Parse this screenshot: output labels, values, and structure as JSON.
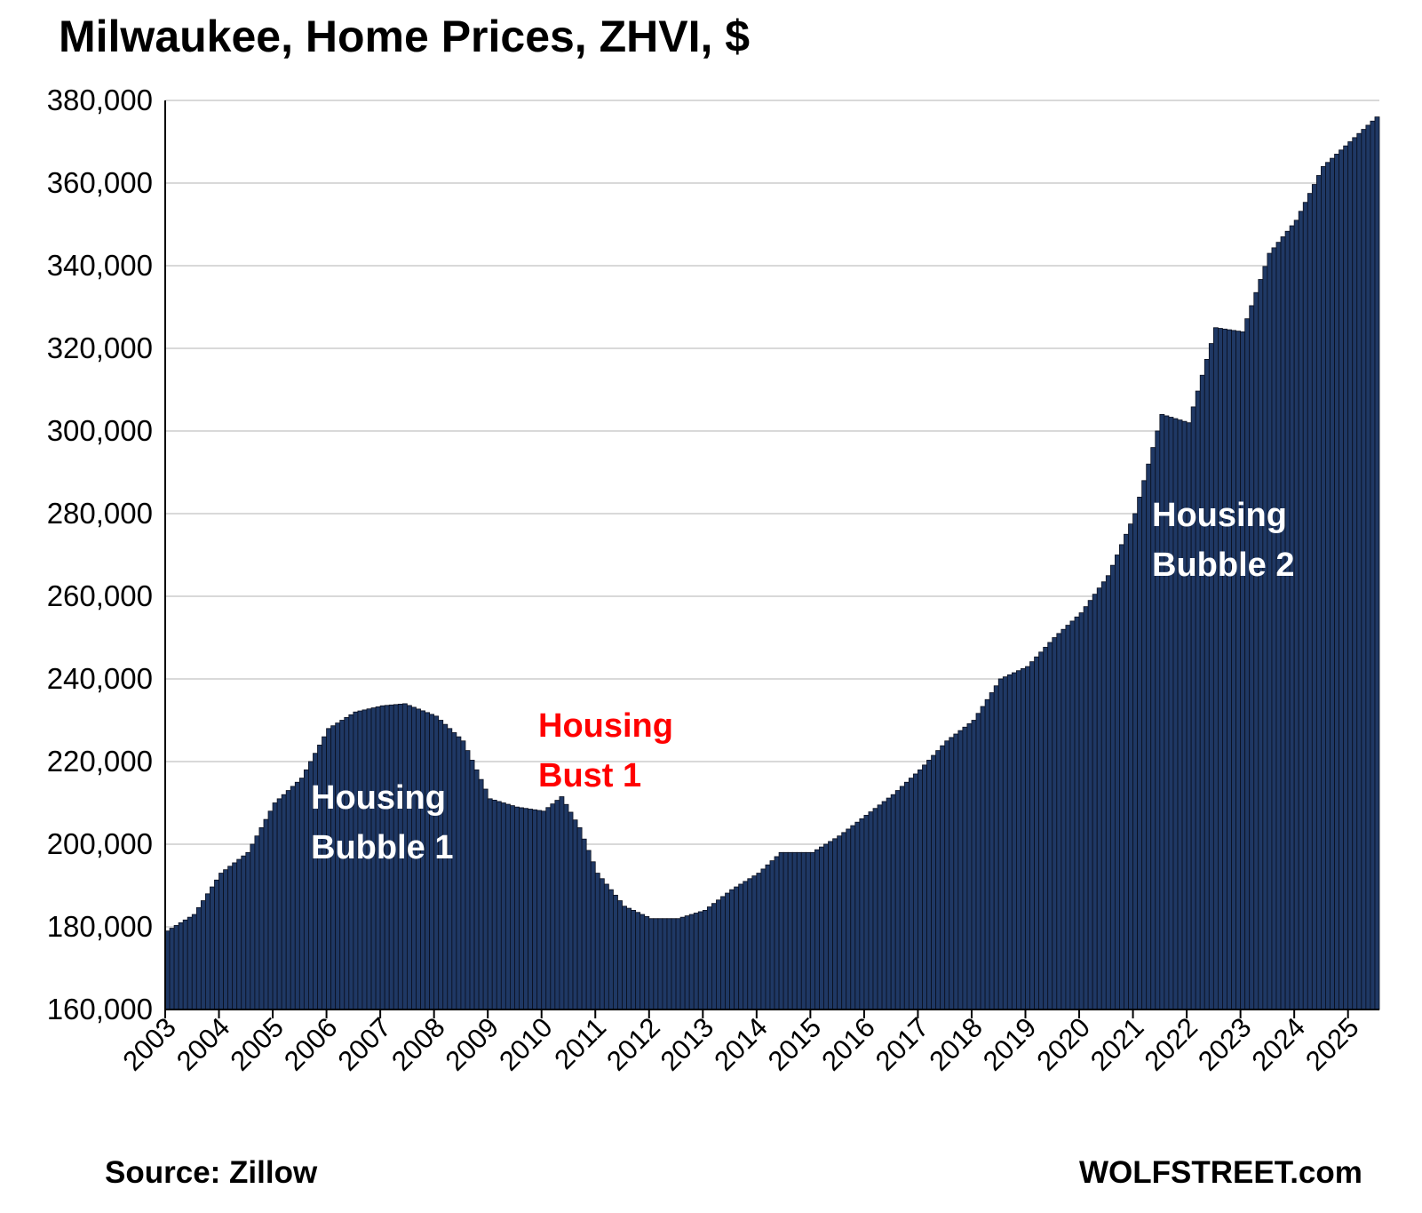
{
  "chart_data": {
    "type": "bar",
    "title": "Milwaukee, Home Prices, ZHVI, $",
    "xlabel": "",
    "ylabel": "",
    "ylim": [
      160000,
      380000
    ],
    "yticks": [
      "160,000",
      "180,000",
      "200,000",
      "220,000",
      "240,000",
      "260,000",
      "280,000",
      "300,000",
      "320,000",
      "340,000",
      "360,000",
      "380,000"
    ],
    "ytick_values": [
      160000,
      180000,
      200000,
      220000,
      240000,
      260000,
      280000,
      300000,
      320000,
      340000,
      360000,
      380000
    ],
    "xticks": [
      "2003",
      "2004",
      "2005",
      "2006",
      "2007",
      "2008",
      "2009",
      "2010",
      "2011",
      "2012",
      "2013",
      "2014",
      "2015",
      "2016",
      "2017",
      "2018",
      "2019",
      "2020",
      "2021",
      "2022",
      "2023",
      "2024",
      "2025"
    ],
    "grid": true,
    "bar_color": "#1f3864",
    "annotations": [
      {
        "lines": [
          "Housing",
          "Bubble 1"
        ],
        "color": "#ffffff"
      },
      {
        "lines": [
          "Housing",
          "Bust 1"
        ],
        "color": "#ff0000"
      },
      {
        "lines": [
          "Housing",
          "Bubble 2"
        ],
        "color": "#ffffff"
      }
    ],
    "monthly_anchors": [
      [
        "2003-01",
        179000
      ],
      [
        "2003-07",
        183000
      ],
      [
        "2004-01",
        193000
      ],
      [
        "2004-07",
        198000
      ],
      [
        "2005-01",
        210000
      ],
      [
        "2005-07",
        216000
      ],
      [
        "2006-01",
        228000
      ],
      [
        "2006-07",
        232000
      ],
      [
        "2007-01",
        233500
      ],
      [
        "2007-06",
        234000
      ],
      [
        "2008-01",
        231000
      ],
      [
        "2008-07",
        225000
      ],
      [
        "2009-01",
        211000
      ],
      [
        "2009-07",
        209000
      ],
      [
        "2010-01",
        208000
      ],
      [
        "2010-05",
        211500
      ],
      [
        "2010-09",
        204000
      ],
      [
        "2011-01",
        193000
      ],
      [
        "2011-07",
        185000
      ],
      [
        "2012-01",
        182000
      ],
      [
        "2012-07",
        182000
      ],
      [
        "2013-01",
        184000
      ],
      [
        "2013-07",
        189000
      ],
      [
        "2014-01",
        193000
      ],
      [
        "2014-06",
        198000
      ],
      [
        "2015-01",
        198000
      ],
      [
        "2015-07",
        202000
      ],
      [
        "2016-01",
        207000
      ],
      [
        "2016-07",
        212000
      ],
      [
        "2017-01",
        218000
      ],
      [
        "2017-07",
        225000
      ],
      [
        "2018-01",
        230000
      ],
      [
        "2018-07",
        240000
      ],
      [
        "2019-01",
        243000
      ],
      [
        "2019-07",
        250000
      ],
      [
        "2020-01",
        256000
      ],
      [
        "2020-07",
        265000
      ],
      [
        "2021-01",
        280000
      ],
      [
        "2021-07",
        304000
      ],
      [
        "2022-01",
        302000
      ],
      [
        "2022-07",
        325000
      ],
      [
        "2023-01",
        324000
      ],
      [
        "2023-07",
        343000
      ],
      [
        "2024-01",
        351000
      ],
      [
        "2024-07",
        364000
      ],
      [
        "2025-01",
        370000
      ],
      [
        "2025-07",
        376000
      ]
    ]
  },
  "footer": {
    "source": "Source: Zillow",
    "brand": "WOLFSTREET.com"
  }
}
